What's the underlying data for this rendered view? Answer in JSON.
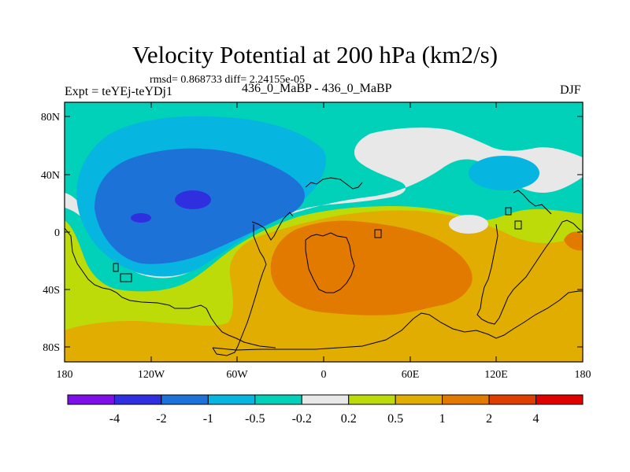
{
  "chart_data": {
    "type": "contour-map",
    "title": "Velocity Potential at 200 hPa (km2/s)",
    "stats": "rmsd= 0.868733 diff= 2.24155e-05",
    "left_label": "Expt = teYEj-teYDj1",
    "center_label": "436_0_MaBP - 436_0_MaBP",
    "right_label": "DJF",
    "y_ticks": [
      "80N",
      "40N",
      "0",
      "40S",
      "80S"
    ],
    "x_ticks": [
      "180",
      "120W",
      "60W",
      "0",
      "60E",
      "120E",
      "180"
    ],
    "xlim": [
      -180,
      180
    ],
    "ylim": [
      -90,
      90
    ],
    "colorbar": {
      "levels": [
        "-4",
        "-2",
        "-1",
        "-0.5",
        "-0.2",
        "0.2",
        "0.5",
        "1",
        "2",
        "4"
      ],
      "colors": [
        "#7f0fe8",
        "#2f2fe0",
        "#1d72d8",
        "#06b6e0",
        "#00d1b8",
        "#e8e8e8",
        "#bcdb08",
        "#e0ad00",
        "#e37a00",
        "#de3e00",
        "#e00000"
      ]
    },
    "colors": {
      "c_neg4": "#2f2fe0",
      "c_neg2": "#1d72d8",
      "c_neg1": "#06b6e0",
      "c_neg05": "#00d1b8",
      "c_zero": "#e8e8e8",
      "c_pos02": "#bcdb08",
      "c_pos05": "#e0ad00",
      "c_pos1": "#e37a00",
      "c_pos2": "#de3e00"
    }
  }
}
